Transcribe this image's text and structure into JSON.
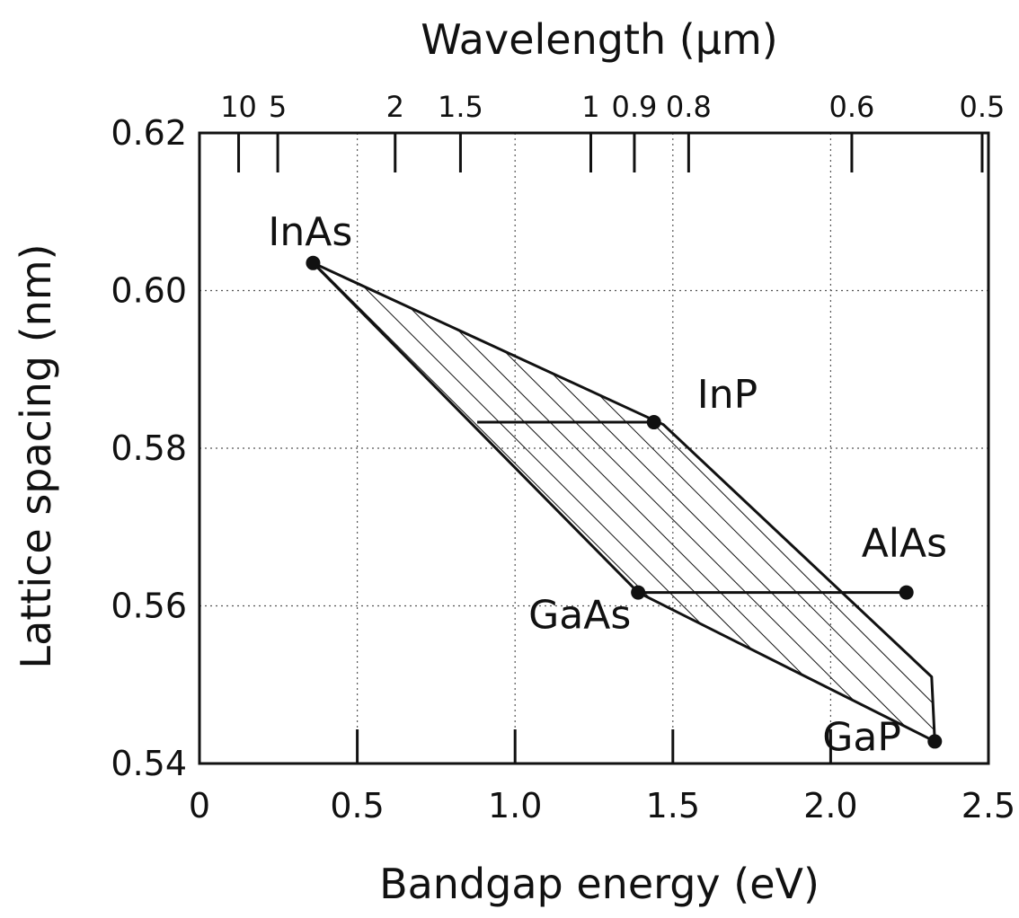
{
  "chart_data": {
    "type": "scatter",
    "xlabel": "Bandgap energy (eV)",
    "ylabel": "Lattice spacing (nm)",
    "top_axis_label": "Wavelength (μm)",
    "xlim": [
      0,
      2.5
    ],
    "ylim": [
      0.54,
      0.62
    ],
    "x_ticks": [
      0,
      0.5,
      1.0,
      1.5,
      2.0,
      2.5
    ],
    "x_tick_labels": [
      "0",
      "0.5",
      "1.0",
      "1.5",
      "2.0",
      "2.5"
    ],
    "y_ticks": [
      0.54,
      0.56,
      0.58,
      0.6,
      0.62
    ],
    "y_tick_labels": [
      "0.54",
      "0.56",
      "0.58",
      "0.60",
      "0.62"
    ],
    "top_ticks": [
      {
        "label": "10",
        "energy": 0.124
      },
      {
        "label": "5",
        "energy": 0.248
      },
      {
        "label": "2",
        "energy": 0.62
      },
      {
        "label": "1.5",
        "energy": 0.827
      },
      {
        "label": "1",
        "energy": 1.24
      },
      {
        "label": "0.9",
        "energy": 1.378
      },
      {
        "label": "0.8",
        "energy": 1.55
      },
      {
        "label": "0.6",
        "energy": 2.067
      },
      {
        "label": "0.5",
        "energy": 2.48
      }
    ],
    "grid": true,
    "points": [
      {
        "label": "InAs",
        "x": 0.36,
        "y": 0.6035
      },
      {
        "label": "InP",
        "x": 1.44,
        "y": 0.5833
      },
      {
        "label": "GaAs",
        "x": 1.39,
        "y": 0.5617
      },
      {
        "label": "AlAs",
        "x": 2.24,
        "y": 0.5617
      },
      {
        "label": "GaP",
        "x": 2.33,
        "y": 0.5428
      }
    ],
    "shaded_region": [
      {
        "x": 0.36,
        "y": 0.6035
      },
      {
        "x": 1.47,
        "y": 0.583
      },
      {
        "x": 2.32,
        "y": 0.551
      },
      {
        "x": 2.33,
        "y": 0.5428
      },
      {
        "x": 1.39,
        "y": 0.5617
      },
      {
        "x": 0.36,
        "y": 0.6035
      }
    ],
    "tie_lines": [
      {
        "from": {
          "x": 0.88,
          "y": 0.5833
        },
        "to": {
          "x": 1.44,
          "y": 0.5833
        }
      },
      {
        "from": {
          "x": 1.39,
          "y": 0.5617
        },
        "to": {
          "x": 2.24,
          "y": 0.5617
        }
      }
    ]
  }
}
